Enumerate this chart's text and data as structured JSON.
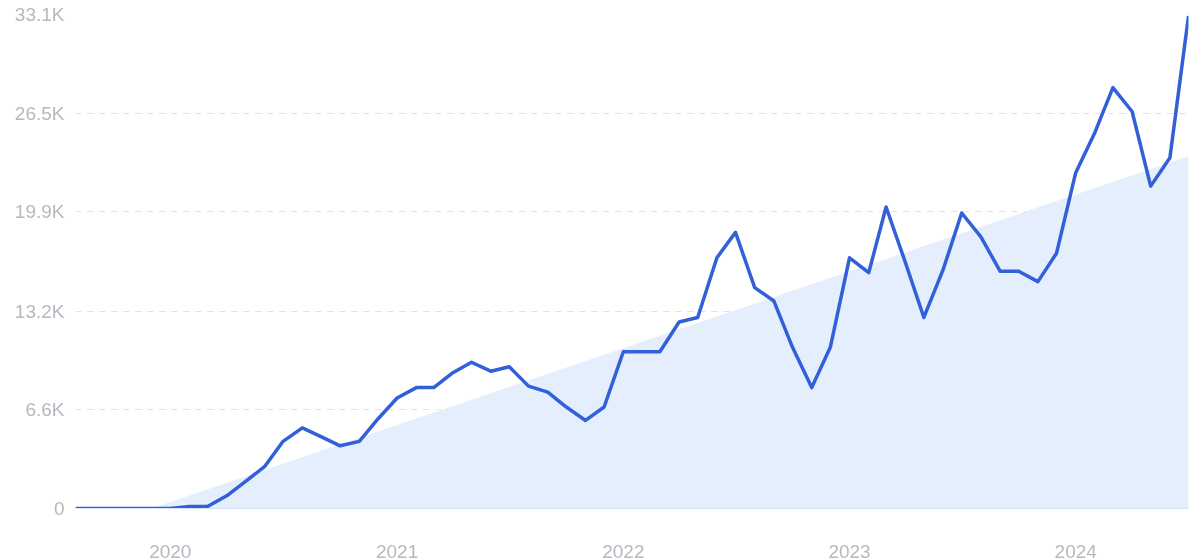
{
  "chart_data": {
    "type": "line",
    "x": [
      "2019-08",
      "2019-09",
      "2019-10",
      "2019-11",
      "2019-12",
      "2020-01",
      "2020-02",
      "2020-03",
      "2020-04",
      "2020-05",
      "2020-06",
      "2020-07",
      "2020-08",
      "2020-09",
      "2020-10",
      "2020-11",
      "2020-12",
      "2021-01",
      "2021-02",
      "2021-03",
      "2021-04",
      "2021-05",
      "2021-06",
      "2021-07",
      "2021-08",
      "2021-09",
      "2021-10",
      "2021-11",
      "2021-12",
      "2022-01",
      "2022-02",
      "2022-03",
      "2022-04",
      "2022-05",
      "2022-06",
      "2022-07",
      "2022-08",
      "2022-09",
      "2022-10",
      "2022-11",
      "2022-12",
      "2023-01",
      "2023-02",
      "2023-03",
      "2023-04",
      "2023-05",
      "2023-06",
      "2023-07",
      "2023-08",
      "2023-09",
      "2023-10",
      "2023-11",
      "2023-12",
      "2024-01",
      "2024-02",
      "2024-03",
      "2024-04",
      "2024-05",
      "2024-06",
      "2024-07"
    ],
    "series": [
      {
        "type": "area",
        "color": "#e4eefc",
        "x": [
          "2019-12",
          "2024-07"
        ],
        "values": [
          0,
          23600
        ]
      },
      {
        "color": "#3160d8",
        "values": [
          0,
          0,
          0,
          0,
          0,
          0,
          140,
          140,
          850,
          1800,
          2800,
          4500,
          5400,
          4800,
          4200,
          4500,
          6000,
          7400,
          8100,
          8100,
          9100,
          9800,
          9200,
          9500,
          8200,
          7800,
          6800,
          5900,
          6800,
          10500,
          10500,
          10500,
          12500,
          12800,
          16800,
          18500,
          14800,
          13900,
          10800,
          8100,
          10800,
          16800,
          15800,
          20200,
          16500,
          12800,
          16000,
          19800,
          18200,
          15900,
          15900,
          15200,
          17100,
          22500,
          25200,
          28200,
          26600,
          21600,
          23500,
          33000
        ]
      }
    ],
    "xlim": [
      "2019-08",
      "2024-07"
    ],
    "xticks": [
      "2020",
      "2021",
      "2022",
      "2023",
      "2024"
    ],
    "ylim": [
      0,
      33100
    ],
    "yticks": [
      0,
      {
        "value": 6600,
        "label": "6.6K"
      },
      {
        "value": 13200,
        "label": "13.2K"
      },
      {
        "value": 19900,
        "label": "19.9K"
      },
      {
        "value": 26500,
        "label": "26.5K"
      },
      {
        "value": 33100,
        "label": "33.1K"
      }
    ],
    "grid": "y",
    "line_style": "solid",
    "marker": "none"
  }
}
